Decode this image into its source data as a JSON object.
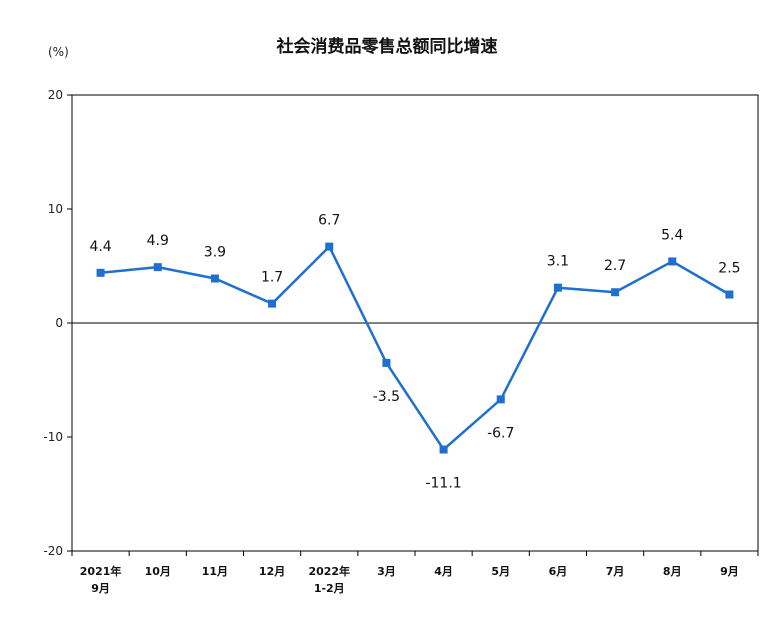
{
  "chart_data": {
    "type": "line",
    "title": "社会消费品零售总额同比增速",
    "unit": "(%)",
    "categories": [
      [
        "2021年",
        "9月"
      ],
      [
        "10月"
      ],
      [
        "11月"
      ],
      [
        "12月"
      ],
      [
        "2022年",
        "1-2月"
      ],
      [
        "3月"
      ],
      [
        "4月"
      ],
      [
        "5月"
      ],
      [
        "6月"
      ],
      [
        "7月"
      ],
      [
        "8月"
      ],
      [
        "9月"
      ]
    ],
    "values": [
      4.4,
      4.9,
      3.9,
      1.7,
      6.7,
      -3.5,
      -11.1,
      -6.7,
      3.1,
      2.7,
      5.4,
      2.5
    ],
    "data_labels": [
      "4.4",
      "4.9",
      "3.9",
      "1.7",
      "6.7",
      "-3.5",
      "-11.1",
      "-6.7",
      "3.1",
      "2.7",
      "5.4",
      "2.5"
    ],
    "ylim": [
      -20,
      20
    ],
    "yticks": [
      20,
      10,
      0,
      -10,
      -20
    ],
    "line_color": "#1f6fd1",
    "grid": false,
    "legend": "none"
  }
}
